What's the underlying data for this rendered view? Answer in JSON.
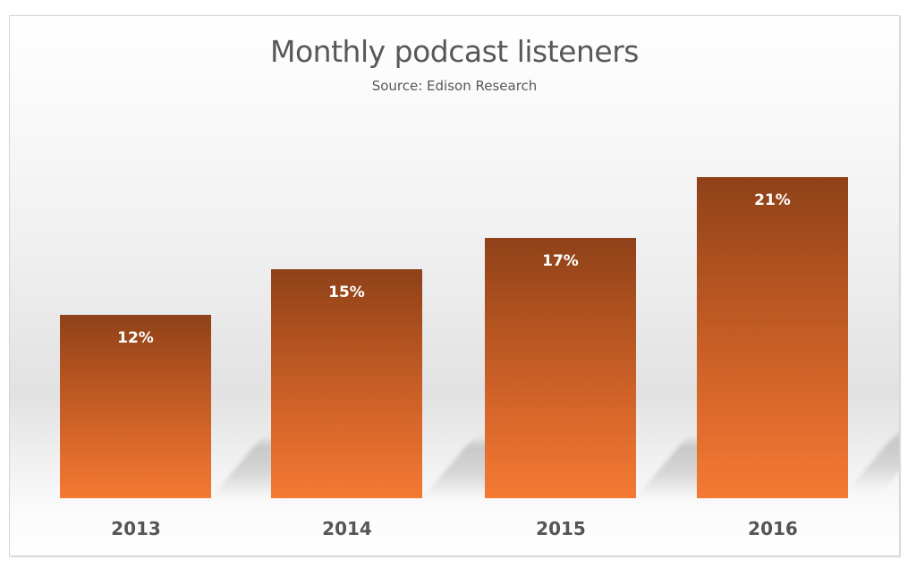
{
  "chart_data": {
    "type": "bar",
    "title": "Monthly podcast listeners",
    "subtitle": "Source: Edison Research",
    "categories": [
      "2013",
      "2014",
      "2015",
      "2016"
    ],
    "values": [
      12,
      15,
      17,
      21
    ],
    "value_labels": [
      "12%",
      "15%",
      "17%",
      "21%"
    ],
    "unit": "%",
    "xlabel": "",
    "ylabel": "",
    "grid": false,
    "legend": null,
    "colors": {
      "bar_top": "#8f4119",
      "bar_bottom": "#f47a32",
      "label_text": "#ffffff",
      "axis_text": "#555557",
      "title_text": "#58585a"
    }
  }
}
